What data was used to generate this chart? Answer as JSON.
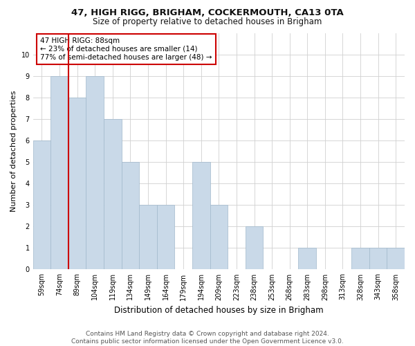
{
  "title1": "47, HIGH RIGG, BRIGHAM, COCKERMOUTH, CA13 0TA",
  "title2": "Size of property relative to detached houses in Brigham",
  "xlabel": "Distribution of detached houses by size in Brigham",
  "ylabel": "Number of detached properties",
  "categories": [
    "59sqm",
    "74sqm",
    "89sqm",
    "104sqm",
    "119sqm",
    "134sqm",
    "149sqm",
    "164sqm",
    "179sqm",
    "194sqm",
    "209sqm",
    "223sqm",
    "238sqm",
    "253sqm",
    "268sqm",
    "283sqm",
    "298sqm",
    "313sqm",
    "328sqm",
    "343sqm",
    "358sqm"
  ],
  "values": [
    6,
    9,
    8,
    9,
    7,
    5,
    3,
    3,
    0,
    5,
    3,
    0,
    2,
    0,
    0,
    1,
    0,
    0,
    1,
    1,
    1
  ],
  "bar_color": "#c9d9e8",
  "bar_edgecolor": "#a0b8cc",
  "highlight_line_index": 2,
  "highlight_color": "#cc0000",
  "annotation_text": "47 HIGH RIGG: 88sqm\n← 23% of detached houses are smaller (14)\n77% of semi-detached houses are larger (48) →",
  "annotation_box_color": "#ffffff",
  "annotation_box_edgecolor": "#cc0000",
  "ylim": [
    0,
    11
  ],
  "yticks": [
    0,
    1,
    2,
    3,
    4,
    5,
    6,
    7,
    8,
    9,
    10
  ],
  "footnote": "Contains HM Land Registry data © Crown copyright and database right 2024.\nContains public sector information licensed under the Open Government Licence v3.0.",
  "background_color": "#ffffff",
  "grid_color": "#d0d0d0",
  "title1_fontsize": 9.5,
  "title2_fontsize": 8.5,
  "ylabel_fontsize": 8,
  "xlabel_fontsize": 8.5,
  "tick_fontsize": 7,
  "footnote_fontsize": 6.5
}
